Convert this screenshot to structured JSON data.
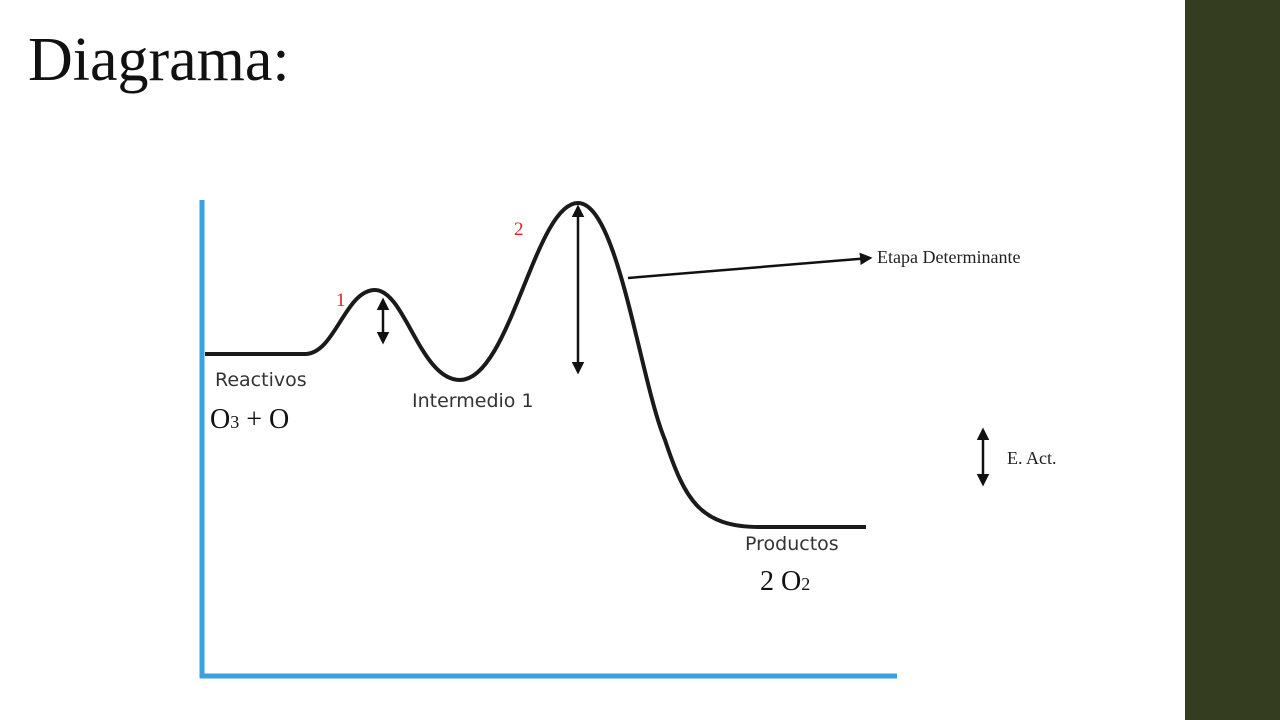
{
  "title": "Diagrama:",
  "diagram": {
    "peaks": [
      {
        "label": "1"
      },
      {
        "label": "2"
      }
    ],
    "reactants": {
      "label": "Reactivos",
      "formula": [
        "O",
        "3",
        " + O"
      ]
    },
    "intermediate": {
      "label": "Intermedio 1"
    },
    "products": {
      "label": "Productos",
      "formula": [
        "2 O",
        "2"
      ]
    },
    "annotation": "Etapa Determinante",
    "legend": "E. Act."
  }
}
